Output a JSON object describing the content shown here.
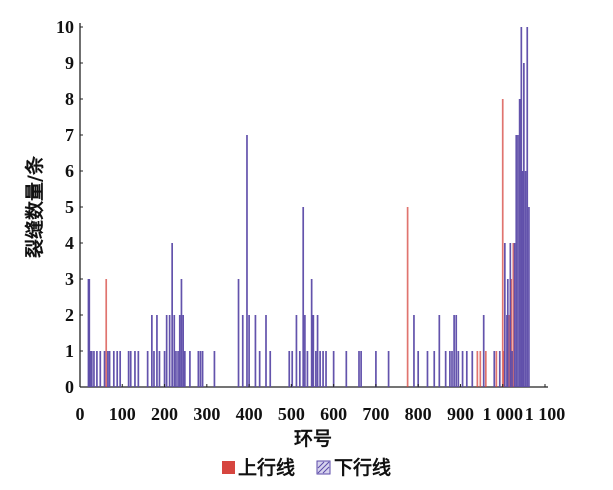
{
  "chart_data": {
    "type": "bar",
    "xlabel": "环号",
    "ylabel": "裂缝数量/条",
    "xlim": [
      0,
      1100
    ],
    "ylim": [
      0,
      10
    ],
    "xticks": [
      0,
      100,
      200,
      300,
      400,
      500,
      600,
      700,
      800,
      900,
      1000,
      1100
    ],
    "xtick_labels": [
      "0",
      "100",
      "200",
      "300",
      "400",
      "500",
      "600",
      "700",
      "800",
      "900",
      "1 000",
      "1 100"
    ],
    "yticks": [
      0,
      1,
      2,
      3,
      4,
      5,
      6,
      7,
      8,
      9,
      10
    ],
    "grid": false,
    "legend_position": "bottom-center",
    "series": [
      {
        "name": "上行线",
        "color": "#d6453f",
        "points": [
          [
            62,
            3
          ],
          [
            775,
            5
          ],
          [
            940,
            1
          ],
          [
            947,
            1
          ],
          [
            960,
            1
          ],
          [
            985,
            1
          ],
          [
            1000,
            8
          ],
          [
            1003,
            1
          ],
          [
            1015,
            2
          ],
          [
            1020,
            3
          ],
          [
            1025,
            4
          ]
        ]
      },
      {
        "name": "下行线",
        "color": "#5b4aa8",
        "points": [
          [
            20,
            3
          ],
          [
            22,
            3
          ],
          [
            25,
            1
          ],
          [
            28,
            1
          ],
          [
            33,
            1
          ],
          [
            40,
            1
          ],
          [
            48,
            1
          ],
          [
            58,
            1
          ],
          [
            66,
            1
          ],
          [
            70,
            1
          ],
          [
            80,
            1
          ],
          [
            88,
            1
          ],
          [
            95,
            1
          ],
          [
            115,
            1
          ],
          [
            120,
            1
          ],
          [
            130,
            1
          ],
          [
            138,
            1
          ],
          [
            160,
            1
          ],
          [
            170,
            2
          ],
          [
            175,
            1
          ],
          [
            182,
            2
          ],
          [
            188,
            1
          ],
          [
            200,
            1
          ],
          [
            205,
            2
          ],
          [
            212,
            2
          ],
          [
            218,
            4
          ],
          [
            223,
            2
          ],
          [
            227,
            1
          ],
          [
            232,
            1
          ],
          [
            236,
            2
          ],
          [
            240,
            3
          ],
          [
            244,
            2
          ],
          [
            248,
            1
          ],
          [
            260,
            1
          ],
          [
            280,
            1
          ],
          [
            285,
            1
          ],
          [
            290,
            1
          ],
          [
            318,
            1
          ],
          [
            375,
            3
          ],
          [
            385,
            2
          ],
          [
            395,
            7
          ],
          [
            400,
            2
          ],
          [
            415,
            2
          ],
          [
            425,
            1
          ],
          [
            440,
            2
          ],
          [
            450,
            1
          ],
          [
            495,
            1
          ],
          [
            502,
            1
          ],
          [
            512,
            2
          ],
          [
            520,
            1
          ],
          [
            528,
            5
          ],
          [
            532,
            2
          ],
          [
            538,
            1
          ],
          [
            548,
            3
          ],
          [
            552,
            2
          ],
          [
            558,
            1
          ],
          [
            562,
            2
          ],
          [
            568,
            1
          ],
          [
            575,
            1
          ],
          [
            582,
            1
          ],
          [
            600,
            1
          ],
          [
            630,
            1
          ],
          [
            660,
            1
          ],
          [
            665,
            1
          ],
          [
            700,
            1
          ],
          [
            730,
            1
          ],
          [
            790,
            2
          ],
          [
            800,
            1
          ],
          [
            822,
            1
          ],
          [
            838,
            1
          ],
          [
            850,
            2
          ],
          [
            865,
            1
          ],
          [
            875,
            1
          ],
          [
            880,
            1
          ],
          [
            885,
            2
          ],
          [
            890,
            2
          ],
          [
            895,
            1
          ],
          [
            905,
            1
          ],
          [
            915,
            1
          ],
          [
            928,
            1
          ],
          [
            955,
            2
          ],
          [
            980,
            1
          ],
          [
            993,
            1
          ],
          [
            1005,
            4
          ],
          [
            1010,
            2
          ],
          [
            1012,
            3
          ],
          [
            1018,
            4
          ],
          [
            1022,
            1
          ],
          [
            1028,
            4
          ],
          [
            1032,
            7
          ],
          [
            1036,
            7
          ],
          [
            1040,
            8
          ],
          [
            1044,
            10
          ],
          [
            1047,
            6
          ],
          [
            1050,
            9
          ],
          [
            1054,
            6
          ],
          [
            1058,
            10
          ],
          [
            1062,
            5
          ]
        ]
      }
    ]
  }
}
